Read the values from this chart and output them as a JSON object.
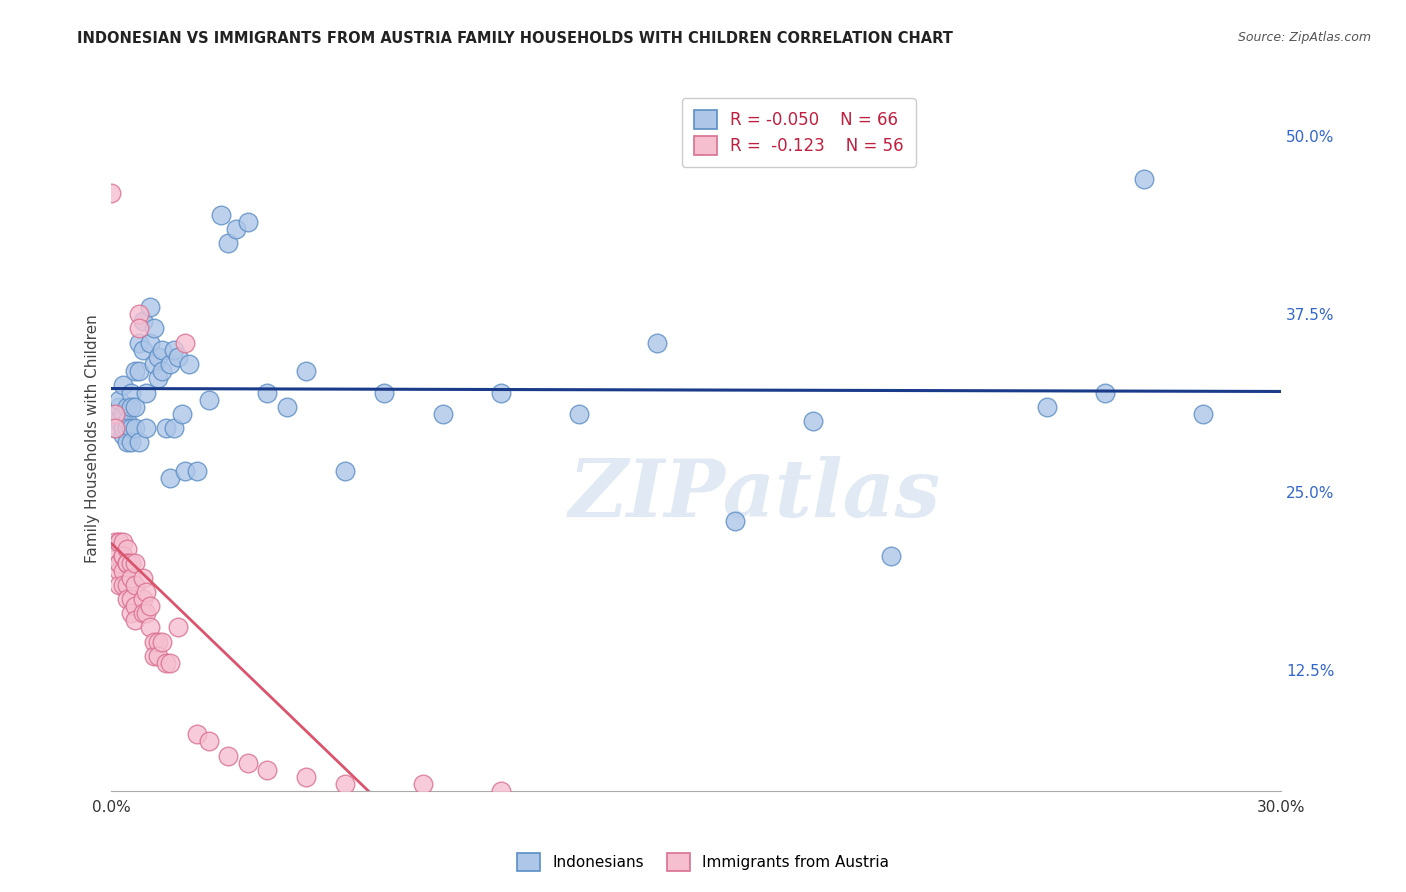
{
  "title": "INDONESIAN VS IMMIGRANTS FROM AUSTRIA FAMILY HOUSEHOLDS WITH CHILDREN CORRELATION CHART",
  "source": "Source: ZipAtlas.com",
  "ylabel": "Family Households with Children",
  "xlim": [
    0.0,
    0.3
  ],
  "ylim": [
    0.04,
    0.535
  ],
  "xtick_positions": [
    0.0,
    0.05,
    0.1,
    0.15,
    0.2,
    0.25,
    0.3
  ],
  "xtick_labels": [
    "0.0%",
    "",
    "",
    "",
    "",
    "",
    "30.0%"
  ],
  "ytick_positions": [
    0.125,
    0.25,
    0.375,
    0.5
  ],
  "ytick_labels": [
    "12.5%",
    "25.0%",
    "37.5%",
    "50.0%"
  ],
  "blue_color": "#aec6e8",
  "blue_edge": "#5b8ec4",
  "pink_color": "#f5bfd0",
  "pink_edge": "#d97090",
  "blue_line_color": "#1a3a8a",
  "pink_line_color": "#d9546c",
  "legend_R_blue": "-0.050",
  "legend_N_blue": "66",
  "legend_R_pink": "-0.123",
  "legend_N_pink": "56",
  "blue_scatter_x": [
    0.001,
    0.001,
    0.002,
    0.002,
    0.002,
    0.003,
    0.003,
    0.003,
    0.003,
    0.004,
    0.004,
    0.004,
    0.004,
    0.005,
    0.005,
    0.005,
    0.005,
    0.006,
    0.006,
    0.006,
    0.007,
    0.007,
    0.007,
    0.008,
    0.008,
    0.009,
    0.009,
    0.01,
    0.01,
    0.011,
    0.011,
    0.012,
    0.012,
    0.013,
    0.013,
    0.014,
    0.015,
    0.015,
    0.016,
    0.016,
    0.017,
    0.018,
    0.019,
    0.02,
    0.022,
    0.025,
    0.028,
    0.03,
    0.032,
    0.035,
    0.04,
    0.045,
    0.05,
    0.06,
    0.07,
    0.085,
    0.1,
    0.12,
    0.14,
    0.16,
    0.18,
    0.2,
    0.24,
    0.255,
    0.265,
    0.28
  ],
  "blue_scatter_y": [
    0.305,
    0.295,
    0.31,
    0.3,
    0.315,
    0.29,
    0.305,
    0.295,
    0.325,
    0.31,
    0.3,
    0.295,
    0.285,
    0.32,
    0.31,
    0.295,
    0.285,
    0.335,
    0.31,
    0.295,
    0.355,
    0.335,
    0.285,
    0.37,
    0.35,
    0.32,
    0.295,
    0.38,
    0.355,
    0.365,
    0.34,
    0.345,
    0.33,
    0.35,
    0.335,
    0.295,
    0.34,
    0.26,
    0.35,
    0.295,
    0.345,
    0.305,
    0.265,
    0.34,
    0.265,
    0.315,
    0.445,
    0.425,
    0.435,
    0.44,
    0.32,
    0.31,
    0.335,
    0.265,
    0.32,
    0.305,
    0.32,
    0.305,
    0.355,
    0.23,
    0.3,
    0.205,
    0.31,
    0.32,
    0.47,
    0.305
  ],
  "pink_scatter_x": [
    0.0,
    0.001,
    0.001,
    0.001,
    0.001,
    0.002,
    0.002,
    0.002,
    0.002,
    0.002,
    0.002,
    0.003,
    0.003,
    0.003,
    0.003,
    0.003,
    0.004,
    0.004,
    0.004,
    0.004,
    0.004,
    0.005,
    0.005,
    0.005,
    0.005,
    0.006,
    0.006,
    0.006,
    0.006,
    0.007,
    0.007,
    0.008,
    0.008,
    0.008,
    0.009,
    0.009,
    0.01,
    0.01,
    0.011,
    0.011,
    0.012,
    0.012,
    0.013,
    0.014,
    0.015,
    0.017,
    0.019,
    0.022,
    0.025,
    0.03,
    0.035,
    0.04,
    0.05,
    0.06,
    0.08,
    0.1
  ],
  "pink_scatter_y": [
    0.46,
    0.305,
    0.295,
    0.215,
    0.205,
    0.215,
    0.2,
    0.195,
    0.185,
    0.215,
    0.2,
    0.215,
    0.205,
    0.195,
    0.205,
    0.185,
    0.21,
    0.2,
    0.185,
    0.175,
    0.2,
    0.2,
    0.19,
    0.175,
    0.165,
    0.2,
    0.185,
    0.17,
    0.16,
    0.375,
    0.365,
    0.19,
    0.175,
    0.165,
    0.18,
    0.165,
    0.17,
    0.155,
    0.145,
    0.135,
    0.145,
    0.135,
    0.145,
    0.13,
    0.13,
    0.155,
    0.355,
    0.08,
    0.075,
    0.065,
    0.06,
    0.055,
    0.05,
    0.045,
    0.045,
    0.04
  ],
  "pink_line_solid_end": 0.15,
  "watermark": "ZIPatlas",
  "background_color": "#ffffff",
  "grid_color": "#cccccc"
}
